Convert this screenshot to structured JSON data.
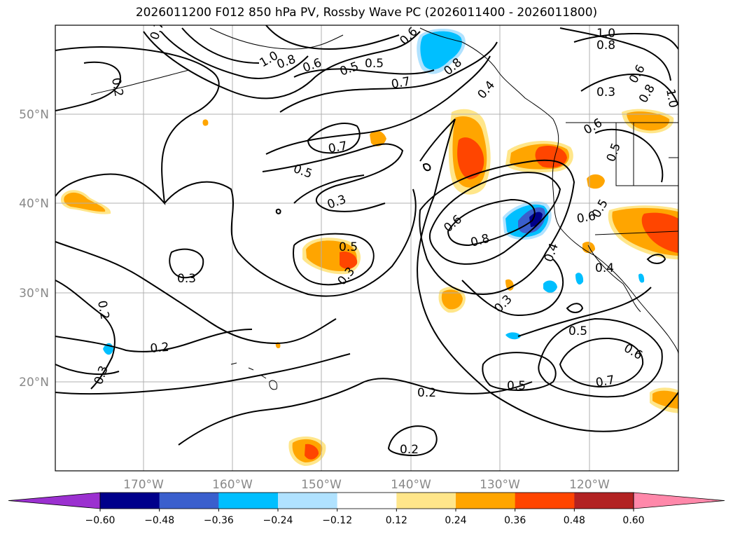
{
  "title": "2026011200 F012 850 hPa PV, Rossby Wave PC (2026011400 - 2026011800)",
  "map": {
    "lon_labels": [
      "170°W",
      "160°W",
      "150°W",
      "140°W",
      "130°W",
      "120°W"
    ],
    "lat_labels": [
      "50°N",
      "40°N",
      "30°N",
      "20°N"
    ],
    "contour_labels": [
      "0.7",
      "1.0",
      "0.8",
      "0.6",
      "0.2",
      "0.6",
      "0.5",
      "0.5",
      "0.7",
      "0.8",
      "0.4",
      "1.0",
      "0.8",
      "0.3",
      "0.6",
      "0.8",
      "1.0",
      "0.7",
      "0.5",
      "0.6",
      "0.5",
      "0.3",
      "0.6",
      "0.8",
      "0.5",
      "0.3",
      "0.3",
      "0.2",
      "0.2",
      "0.3",
      "0.4",
      "0.6",
      "0.5",
      "0.4",
      "0.3",
      "0.5",
      "0.6",
      "0.5",
      "0.7",
      "0.2",
      "0.2"
    ],
    "features": {
      "shading": "Rossby Wave PC",
      "contours": "850 hPa PV"
    }
  },
  "colorbar": {
    "ticks": [
      "−0.60",
      "−0.48",
      "−0.36",
      "−0.24",
      "−0.12",
      "0.12",
      "0.24",
      "0.36",
      "0.48",
      "0.60"
    ],
    "colors": [
      "#9b30d0",
      "#00008b",
      "#3a5fcd",
      "#00bfff",
      "#b0e2ff",
      "#ffffff",
      "#ffe68a",
      "#ffa500",
      "#ff4500",
      "#b22222",
      "#ff88aa"
    ]
  }
}
